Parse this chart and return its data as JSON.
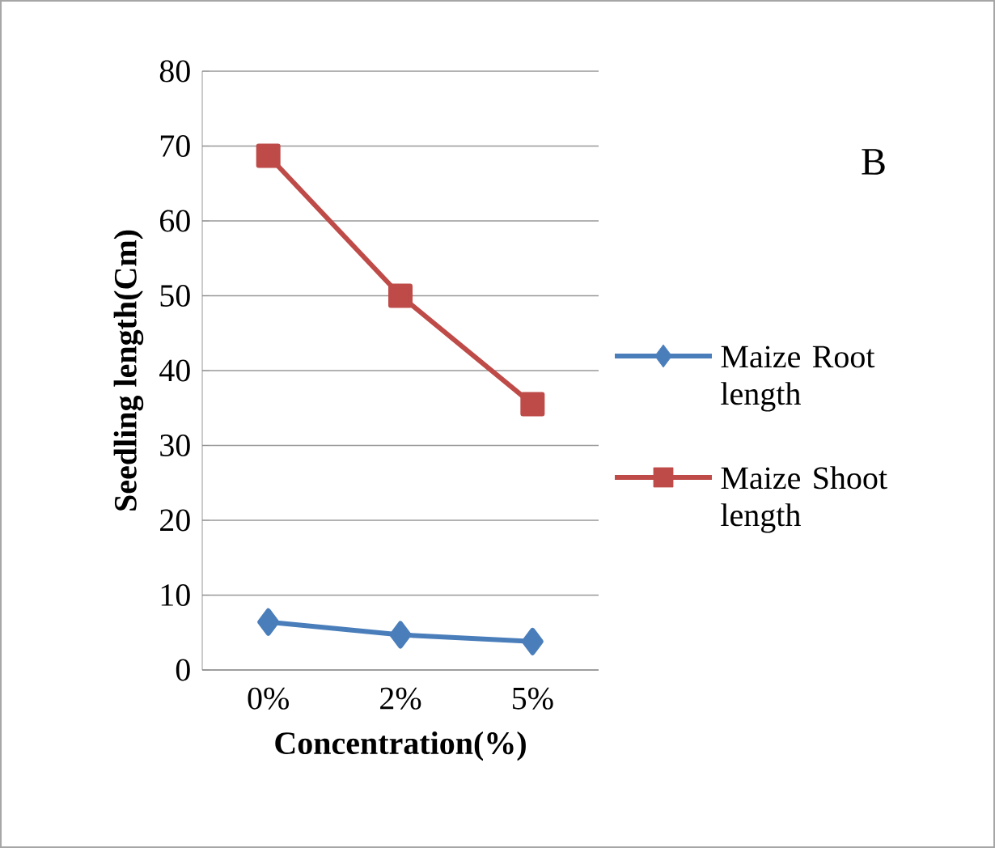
{
  "chart_data": {
    "type": "line",
    "xlabel": "Concentration(%)",
    "ylabel": "Seedling length(Cm)",
    "categories": [
      "0%",
      "2%",
      "5%"
    ],
    "series": [
      {
        "name": "Maize Root length",
        "color": "#4a7ebb",
        "marker": "diamond",
        "values": [
          6.4,
          4.7,
          3.8
        ]
      },
      {
        "name": "Maize Shoot length",
        "color": "#be4b48",
        "marker": "square",
        "values": [
          68.7,
          50,
          35.5
        ]
      }
    ],
    "ylim": [
      0,
      80
    ],
    "yticks": [
      0,
      10,
      20,
      30,
      40,
      50,
      60,
      70,
      80
    ],
    "grid": "y",
    "legend": "right",
    "line_style": "solid",
    "annotations": [
      "B"
    ]
  }
}
